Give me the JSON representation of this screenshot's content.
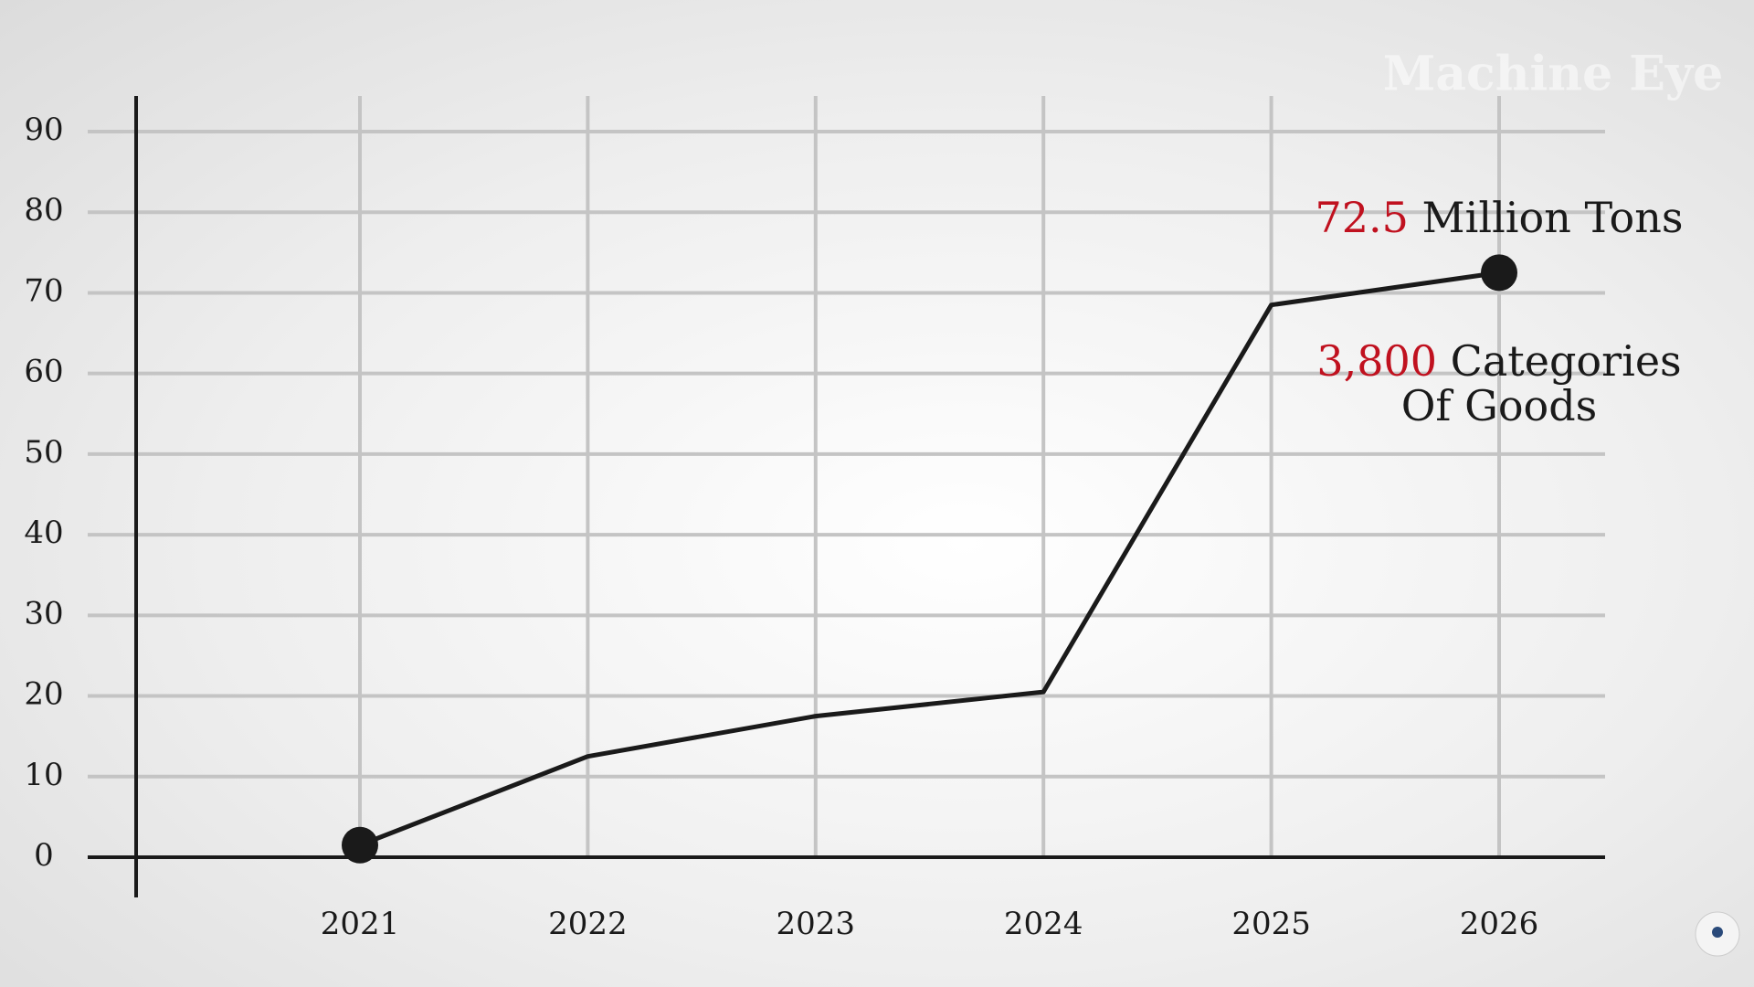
{
  "chart_data": {
    "type": "line",
    "categories": [
      "2021",
      "2022",
      "2023",
      "2024",
      "2025",
      "2026"
    ],
    "series": [
      {
        "color": "#1a1a1a",
        "values": [
          1.5,
          12.5,
          17.5,
          20.5,
          68.5,
          72.5
        ]
      }
    ],
    "ylim": [
      0,
      90
    ],
    "yticks": [
      0,
      10,
      20,
      30,
      40,
      50,
      60,
      70,
      80,
      90
    ],
    "grid": true,
    "annotations": [
      {
        "highlight": "72.5",
        "text": "Million Tons"
      },
      {
        "highlight": "3,800",
        "text": "Categories",
        "text2": "Of Goods"
      }
    ],
    "highlight_color": "#c0111f",
    "watermark": "Machine Eye"
  }
}
